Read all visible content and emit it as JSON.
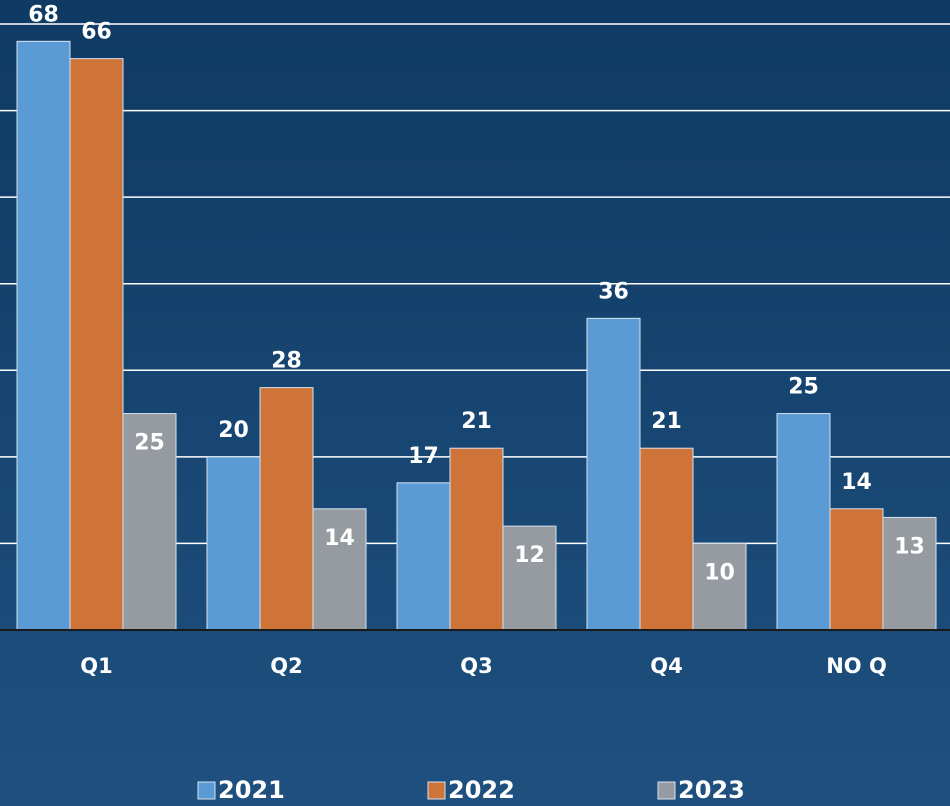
{
  "chart_data": {
    "type": "bar",
    "categories": [
      "Q1",
      "Q2",
      "Q3",
      "Q4",
      "NO Q"
    ],
    "series": [
      {
        "name": "2021",
        "color": "#5b9bd5",
        "values": [
          68,
          20,
          17,
          36,
          25
        ]
      },
      {
        "name": "2022",
        "color": "#cf7439",
        "values": [
          66,
          28,
          21,
          21,
          14
        ]
      },
      {
        "name": "2023",
        "color": "#959ba1",
        "values": [
          25,
          14,
          12,
          10,
          13
        ]
      }
    ],
    "ylim": [
      0,
      70
    ],
    "yticks": [
      0,
      10,
      20,
      30,
      40,
      50,
      60,
      70
    ],
    "grid": true
  }
}
